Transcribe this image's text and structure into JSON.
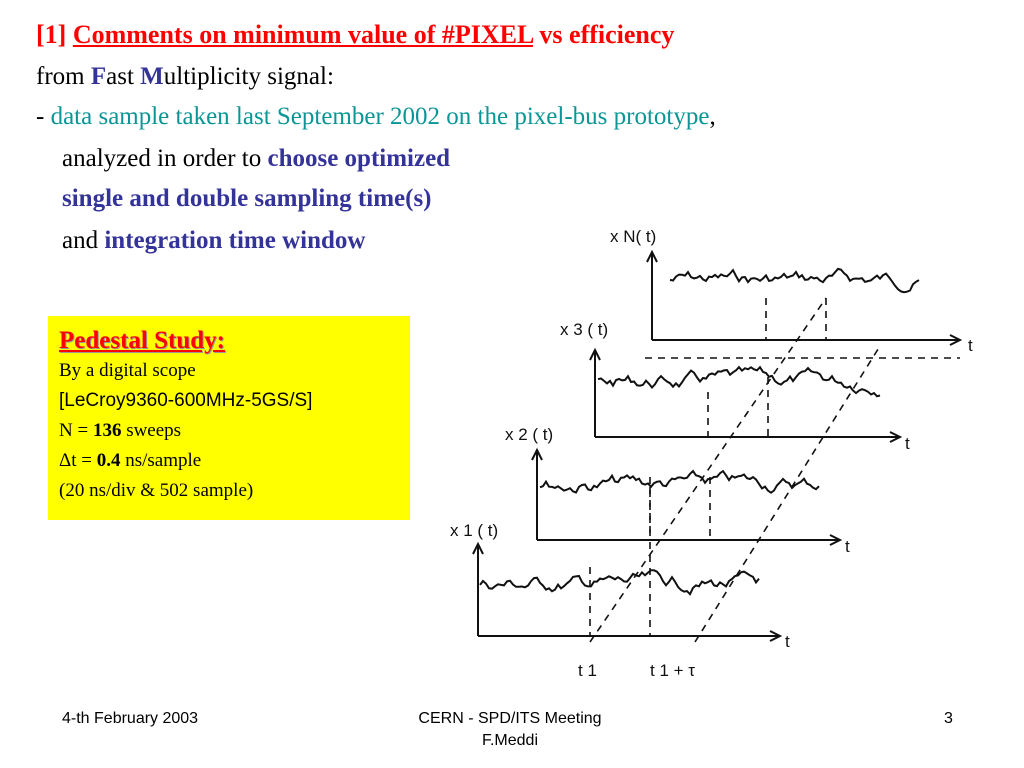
{
  "title": {
    "ref": "[1]",
    "main": "Comments on minimum value of #PIXEL",
    "suffix": " vs efficiency"
  },
  "line2": {
    "pre": "from ",
    "f": "F",
    "ast": "ast ",
    "m": "M",
    "rest": "ultiplicity signal:"
  },
  "line3": {
    "dash": "- ",
    "text": "data sample taken last September 2002 on the pixel-bus prototype",
    "comma": ","
  },
  "line4": {
    "pre": "analyzed in order to ",
    "bold": "choose optimized"
  },
  "line5": {
    "bold": "single and double sampling time(s)"
  },
  "line6": {
    "pre": "and ",
    "bold": "integration time window"
  },
  "pedestal": {
    "heading": "Pedestal Study:",
    "scope": "By a digital scope",
    "model": "[LeCroy9360-600MHz-5GS/S]",
    "n_pre": "N = ",
    "n_val": "136",
    "n_post": " sweeps",
    "dt_pre": "Δt = ",
    "dt_val": "0.4",
    "dt_post": " ns/sample",
    "div": "(20 ns/div & 502 sample)"
  },
  "diagram": {
    "labels": [
      "x N( t)",
      "x 3 ( t)",
      "x 2 ( t)",
      "x 1 ( t)"
    ],
    "axis_t": "t",
    "t1": "t 1",
    "t1tau": "t 1 + τ"
  },
  "footer": {
    "date": "4-th February 2003",
    "meeting": "CERN - SPD/ITS Meeting",
    "author": "F.Meddi",
    "page": "3"
  }
}
